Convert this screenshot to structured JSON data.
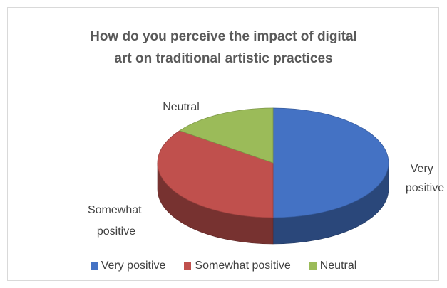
{
  "chart_data": {
    "type": "pie",
    "title": "How do you perceive the impact of digital art on traditional artistic practices",
    "categories": [
      "Very positive",
      "Somewhat positive",
      "Neutral"
    ],
    "values": [
      50,
      35,
      15
    ],
    "colors": [
      "#4472c4",
      "#c0504d",
      "#9bbb59"
    ],
    "legend_position": "bottom",
    "data_labels": [
      "Very positive",
      "Somewhat positive",
      "Neutral"
    ],
    "three_d": true
  },
  "title_lines": [
    "How do you perceive the impact of digital",
    "art on traditional artistic practices"
  ]
}
